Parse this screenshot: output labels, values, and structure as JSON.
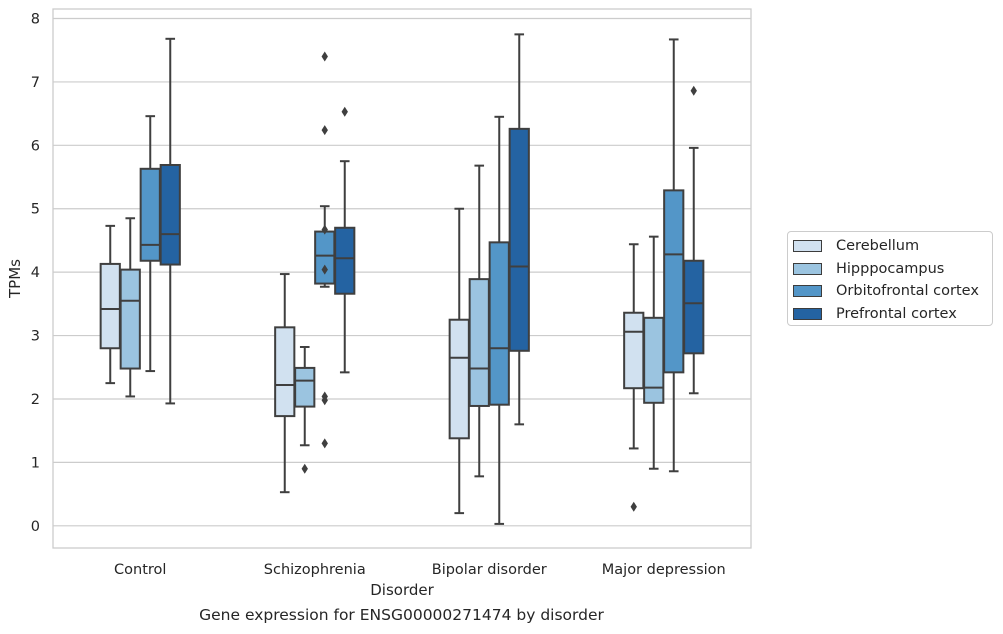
{
  "caption": "Gene expression for ENSG00000271474 by disorder",
  "chart_data": {
    "type": "box",
    "xlabel": "Disorder",
    "ylabel": "TPMs",
    "ylim": [
      -0.35,
      8.15
    ],
    "yticks": [
      0,
      1,
      2,
      3,
      4,
      5,
      6,
      7,
      8
    ],
    "grid": true,
    "legend_position": "right",
    "categories": [
      "Control",
      "Schizophrenia",
      "Bipolar disorder",
      "Major depression"
    ],
    "series": [
      {
        "name": "Cerebellum",
        "color": "#d1e1f0",
        "boxes": [
          {
            "whislo": 2.25,
            "q1": 2.8,
            "med": 3.42,
            "q3": 4.13,
            "whishi": 4.73,
            "fliers": []
          },
          {
            "whislo": 0.53,
            "q1": 1.73,
            "med": 2.22,
            "q3": 3.13,
            "whishi": 3.97,
            "fliers": []
          },
          {
            "whislo": 0.2,
            "q1": 1.38,
            "med": 2.65,
            "q3": 3.25,
            "whishi": 5.0,
            "fliers": []
          },
          {
            "whislo": 1.22,
            "q1": 2.17,
            "med": 3.06,
            "q3": 3.36,
            "whishi": 4.44,
            "fliers": [
              0.3
            ]
          }
        ]
      },
      {
        "name": "Hipppocampus",
        "color": "#9bc4e0",
        "boxes": [
          {
            "whislo": 2.04,
            "q1": 2.48,
            "med": 3.55,
            "q3": 4.04,
            "whishi": 4.85,
            "fliers": []
          },
          {
            "whislo": 1.27,
            "q1": 1.88,
            "med": 2.29,
            "q3": 2.49,
            "whishi": 2.82,
            "fliers": [
              0.9
            ]
          },
          {
            "whislo": 0.78,
            "q1": 1.89,
            "med": 2.48,
            "q3": 3.89,
            "whishi": 5.68,
            "fliers": []
          },
          {
            "whislo": 0.9,
            "q1": 1.94,
            "med": 2.18,
            "q3": 3.28,
            "whishi": 4.56,
            "fliers": []
          }
        ]
      },
      {
        "name": "Orbitofrontal cortex",
        "color": "#5396c8",
        "boxes": [
          {
            "whislo": 2.44,
            "q1": 4.18,
            "med": 4.43,
            "q3": 5.63,
            "whishi": 6.46,
            "fliers": []
          },
          {
            "whislo": 3.77,
            "q1": 3.82,
            "med": 4.26,
            "q3": 4.64,
            "whishi": 5.04,
            "fliers": [
              7.4,
              6.24,
              4.67,
              4.04,
              2.04,
              1.98,
              1.3
            ]
          },
          {
            "whislo": 0.03,
            "q1": 1.91,
            "med": 2.8,
            "q3": 4.47,
            "whishi": 6.45,
            "fliers": []
          },
          {
            "whislo": 0.86,
            "q1": 2.42,
            "med": 4.28,
            "q3": 5.29,
            "whishi": 7.67,
            "fliers": []
          }
        ]
      },
      {
        "name": "Prefrontal cortex",
        "color": "#2463a2",
        "boxes": [
          {
            "whislo": 1.93,
            "q1": 4.12,
            "med": 4.6,
            "q3": 5.69,
            "whishi": 7.68,
            "fliers": []
          },
          {
            "whislo": 2.42,
            "q1": 3.66,
            "med": 4.22,
            "q3": 4.7,
            "whishi": 5.75,
            "fliers": [
              6.53
            ]
          },
          {
            "whislo": 1.6,
            "q1": 2.76,
            "med": 4.09,
            "q3": 6.26,
            "whishi": 7.75,
            "fliers": []
          },
          {
            "whislo": 2.09,
            "q1": 2.72,
            "med": 3.51,
            "q3": 4.18,
            "whishi": 5.96,
            "fliers": [
              6.86
            ]
          }
        ]
      }
    ]
  }
}
